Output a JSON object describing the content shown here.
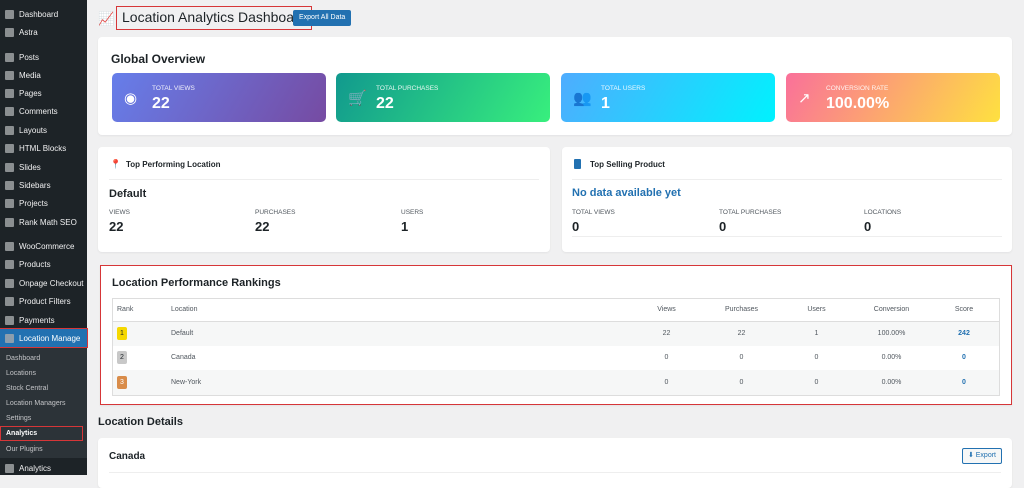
{
  "sidebar": {
    "items": [
      {
        "label": "Dashboard"
      },
      {
        "label": "Astra"
      },
      {
        "label": "Posts"
      },
      {
        "label": "Media"
      },
      {
        "label": "Pages"
      },
      {
        "label": "Comments"
      },
      {
        "label": "Layouts"
      },
      {
        "label": "HTML Blocks"
      },
      {
        "label": "Slides"
      },
      {
        "label": "Sidebars"
      },
      {
        "label": "Projects"
      },
      {
        "label": "Rank Math SEO"
      },
      {
        "label": "WooCommerce"
      },
      {
        "label": "Products"
      },
      {
        "label": "Onpage Checkout"
      },
      {
        "label": "Product Filters"
      },
      {
        "label": "Payments"
      },
      {
        "label": "Location Manage"
      }
    ],
    "submenu": [
      {
        "label": "Dashboard"
      },
      {
        "label": "Locations"
      },
      {
        "label": "Stock Central"
      },
      {
        "label": "Location Managers"
      },
      {
        "label": "Settings"
      },
      {
        "label": "Analytics"
      },
      {
        "label": "Our Plugins"
      }
    ],
    "bottom": {
      "label": "Analytics"
    }
  },
  "header": {
    "title": "Location Analytics Dashboard",
    "export_all": "Export All Data"
  },
  "overview": {
    "title": "Global Overview",
    "stats": [
      {
        "label": "TOTAL VIEWS",
        "value": "22",
        "icon": "eye-icon"
      },
      {
        "label": "TOTAL PURCHASES",
        "value": "22",
        "icon": "cart-icon"
      },
      {
        "label": "TOTAL USERS",
        "value": "1",
        "icon": "users-icon"
      },
      {
        "label": "CONVERSION RATE",
        "value": "100.00%",
        "icon": "chart-line-icon"
      }
    ]
  },
  "top_location": {
    "title": "Top Performing Location",
    "name": "Default",
    "metrics": [
      {
        "label": "VIEWS",
        "value": "22"
      },
      {
        "label": "PURCHASES",
        "value": "22"
      },
      {
        "label": "USERS",
        "value": "1"
      }
    ]
  },
  "top_product": {
    "title": "Top Selling Product",
    "name": "No data available yet",
    "metrics": [
      {
        "label": "TOTAL VIEWS",
        "value": "0"
      },
      {
        "label": "TOTAL PURCHASES",
        "value": "0"
      },
      {
        "label": "LOCATIONS",
        "value": "0"
      }
    ]
  },
  "rankings": {
    "title": "Location Performance Rankings",
    "columns": [
      "Rank",
      "Location",
      "Views",
      "Purchases",
      "Users",
      "Conversion",
      "Score"
    ],
    "rows": [
      {
        "rank": "1",
        "location": "Default",
        "views": "22",
        "purchases": "22",
        "users": "1",
        "conversion": "100.00%",
        "score": "242",
        "badge_color": "#f5d800"
      },
      {
        "rank": "2",
        "location": "Canada",
        "views": "0",
        "purchases": "0",
        "users": "0",
        "conversion": "0.00%",
        "score": "0",
        "badge_color": "#c8c8c8"
      },
      {
        "rank": "3",
        "location": "New-York",
        "views": "0",
        "purchases": "0",
        "users": "0",
        "conversion": "0.00%",
        "score": "0",
        "badge_color": "#d98c4a"
      }
    ]
  },
  "details": {
    "title": "Location Details",
    "location": "Canada",
    "export": "Export"
  }
}
